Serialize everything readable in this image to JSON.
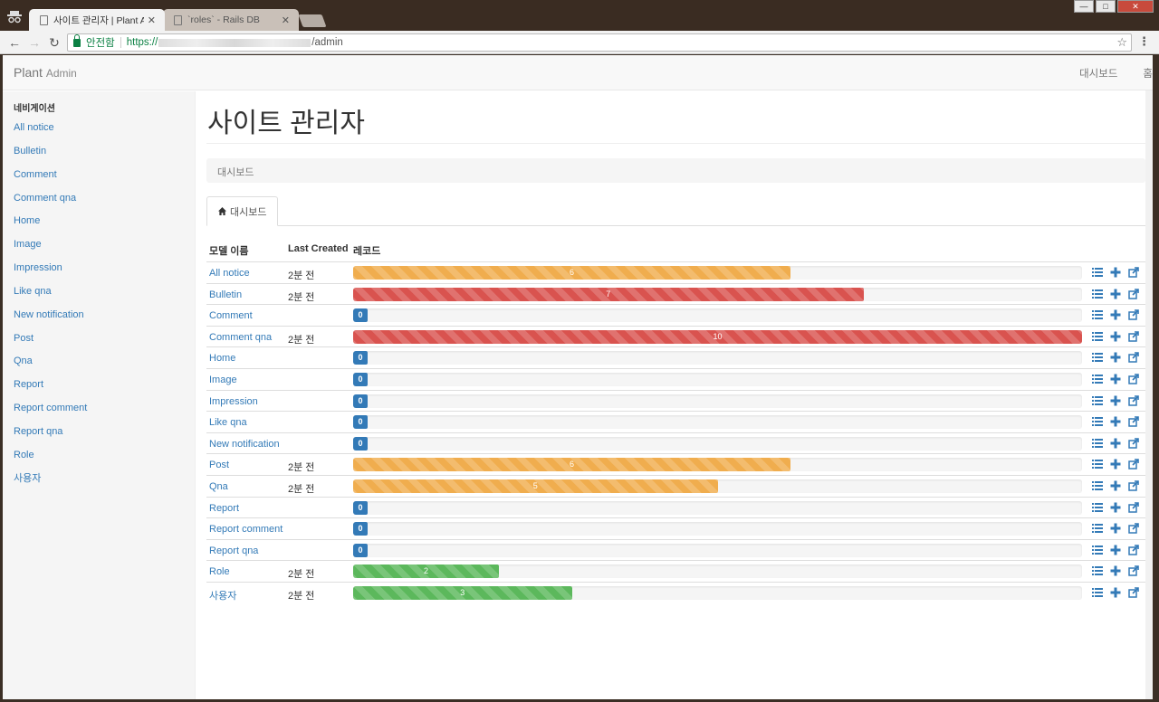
{
  "browser": {
    "tabs": [
      {
        "title": "사이트 관리자 | Plant Ad",
        "close": "✕"
      },
      {
        "title": "`roles` - Rails DB",
        "close": "✕"
      }
    ],
    "address": {
      "secure_label": "안전함",
      "scheme": "https://",
      "path": "/admin"
    }
  },
  "navbar": {
    "brand": "Plant",
    "brand_small": "Admin",
    "links": [
      "대시보드",
      "홈"
    ]
  },
  "sidebar": {
    "header": "네비게이션",
    "items": [
      "All notice",
      "Bulletin",
      "Comment",
      "Comment qna",
      "Home",
      "Image",
      "Impression",
      "Like qna",
      "New notification",
      "Post",
      "Qna",
      "Report",
      "Report comment",
      "Report qna",
      "Role",
      "사용자"
    ]
  },
  "main": {
    "title": "사이트 관리자",
    "breadcrumb": "대시보드",
    "tab_label": "대시보드",
    "table": {
      "headers": [
        "모델 이름",
        "Last Created",
        "레코드"
      ],
      "max_records": 10,
      "rows": [
        {
          "name": "All notice",
          "last": "2분 전",
          "records": 6,
          "style": "warning"
        },
        {
          "name": "Bulletin",
          "last": "2분 전",
          "records": 7,
          "style": "danger"
        },
        {
          "name": "Comment",
          "last": "",
          "records": 0,
          "style": "zero"
        },
        {
          "name": "Comment qna",
          "last": "2분 전",
          "records": 10,
          "style": "danger"
        },
        {
          "name": "Home",
          "last": "",
          "records": 0,
          "style": "zero"
        },
        {
          "name": "Image",
          "last": "",
          "records": 0,
          "style": "zero"
        },
        {
          "name": "Impression",
          "last": "",
          "records": 0,
          "style": "zero"
        },
        {
          "name": "Like qna",
          "last": "",
          "records": 0,
          "style": "zero"
        },
        {
          "name": "New notification",
          "last": "",
          "records": 0,
          "style": "zero"
        },
        {
          "name": "Post",
          "last": "2분 전",
          "records": 6,
          "style": "warning"
        },
        {
          "name": "Qna",
          "last": "2분 전",
          "records": 5,
          "style": "warning"
        },
        {
          "name": "Report",
          "last": "",
          "records": 0,
          "style": "zero"
        },
        {
          "name": "Report comment",
          "last": "",
          "records": 0,
          "style": "zero"
        },
        {
          "name": "Report qna",
          "last": "",
          "records": 0,
          "style": "zero"
        },
        {
          "name": "Role",
          "last": "2분 전",
          "records": 2,
          "style": "success"
        },
        {
          "name": "사용자",
          "last": "2분 전",
          "records": 3,
          "style": "success"
        }
      ]
    }
  },
  "icons": {
    "list": "list-icon",
    "add": "plus-icon",
    "export": "export-icon",
    "accent": "#337ab7"
  }
}
